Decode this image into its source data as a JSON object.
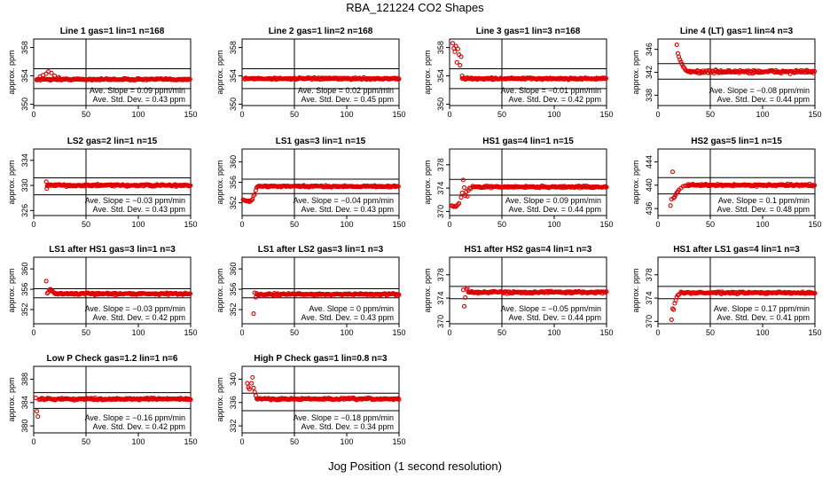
{
  "page": {
    "title": "RBA_121224  CO2 Shapes",
    "xlabel": "Jog Position (1 second resolution)"
  },
  "colors": {
    "point": "#e00000",
    "axis": "#000000"
  },
  "chart_data": [
    {
      "type": "scatter",
      "title": "Line 1 gas=1 lin=1 n=168",
      "ylabel": "approx. ppm",
      "xlim": [
        0,
        150
      ],
      "ylim": [
        349.8,
        359.2
      ],
      "yticks": [
        350,
        354,
        358
      ],
      "xticks": [
        0,
        50,
        100,
        150
      ],
      "hlines": [
        355.0,
        352.2
      ],
      "vline": 50,
      "slope_label": "Ave. Slope = 0.09  ppm/min",
      "std_label": "Ave. Std. Dev. = 0.43  ppm",
      "start": 3,
      "level": 353.5,
      "pre": [
        [
          3,
          353.4
        ],
        [
          6,
          353.9
        ],
        [
          9,
          354.1
        ],
        [
          12,
          354.3
        ],
        [
          14,
          354.6
        ],
        [
          17,
          354.4
        ],
        [
          20,
          354.0
        ],
        [
          24,
          353.8
        ]
      ],
      "noise": 0.12,
      "step": 0.8
    },
    {
      "type": "scatter",
      "title": "Line 2 gas=1 lin=2 n=168",
      "ylabel": "approx. ppm",
      "xlim": [
        0,
        150
      ],
      "ylim": [
        349.8,
        359.2
      ],
      "yticks": [
        350,
        354,
        358
      ],
      "xticks": [
        0,
        50,
        100,
        150
      ],
      "hlines": [
        355.0,
        352.2
      ],
      "vline": 50,
      "slope_label": "Ave. Slope = 0.02  ppm/min",
      "std_label": "Ave. Std. Dev. = 0.45  ppm",
      "start": 2,
      "level": 353.6,
      "pre": [],
      "noise": 0.12,
      "step": 0.8
    },
    {
      "type": "scatter",
      "title": "Line 3 gas=1 lin=3 n=168",
      "ylabel": "approx. ppm",
      "xlim": [
        0,
        150
      ],
      "ylim": [
        349.8,
        359.2
      ],
      "yticks": [
        350,
        354,
        358
      ],
      "xticks": [
        0,
        50,
        100,
        150
      ],
      "hlines": [
        355.0,
        352.2
      ],
      "vline": 50,
      "slope_label": "Ave. Slope = −0.01  ppm/min",
      "std_label": "Ave. Std. Dev. = 0.42  ppm",
      "start": 12,
      "level": 353.6,
      "pre": [
        [
          3,
          358.6
        ],
        [
          4,
          357.9
        ],
        [
          5,
          357.4
        ],
        [
          6,
          358.2
        ],
        [
          7,
          355.9
        ],
        [
          8,
          357.8
        ],
        [
          9,
          357.0
        ],
        [
          10,
          355.5
        ],
        [
          11,
          356.7
        ],
        [
          12,
          354.0
        ]
      ],
      "noise": 0.12,
      "step": 0.8
    },
    {
      "type": "scatter",
      "title": "Line 4 (LT) gas=1 lin=4 n=3",
      "ylabel": "approx. ppm",
      "xlim": [
        0,
        150
      ],
      "ylim": [
        336.2,
        347.8
      ],
      "yticks": [
        338,
        342,
        346
      ],
      "xticks": [
        0,
        50,
        100,
        150
      ],
      "hlines": [
        343.5,
        340.8
      ],
      "vline": 50,
      "slope_label": "Ave. Slope = −0.08  ppm/min",
      "std_label": "Ave. Std. Dev. = 0.44  ppm",
      "start": 28,
      "level": 342.1,
      "pre": [
        [
          18,
          346.8
        ],
        [
          19,
          345.3
        ],
        [
          20,
          344.7
        ],
        [
          21,
          344.2
        ],
        [
          22,
          343.8
        ],
        [
          23,
          343.4
        ],
        [
          24,
          343.0
        ],
        [
          25,
          342.8
        ],
        [
          26,
          342.5
        ],
        [
          27,
          342.3
        ]
      ],
      "noise": 0.25,
      "step": 0.8
    },
    {
      "type": "scatter",
      "title": "LS2 gas=2 lin=1 n=15",
      "ylabel": "approx. ppm",
      "xlim": [
        0,
        150
      ],
      "ylim": [
        325.2,
        335.8
      ],
      "yticks": [
        326,
        330,
        334
      ],
      "xticks": [
        0,
        50,
        100,
        150
      ],
      "hlines": [
        331.2,
        328.5
      ],
      "vline": 50,
      "slope_label": "Ave. Slope = −0.03  ppm/min",
      "std_label": "Ave. Std. Dev. = 0.43  ppm",
      "start": 13,
      "level": 330.0,
      "pre": [
        [
          12,
          330.6
        ],
        [
          12.5,
          329.5
        ],
        [
          13,
          329.9
        ]
      ],
      "noise": 0.15,
      "step": 0.8
    },
    {
      "type": "scatter",
      "title": "LS1 gas=3 lin=1 n=15",
      "ylabel": "approx. ppm",
      "xlim": [
        0,
        150
      ],
      "ylim": [
        349.5,
        362.5
      ],
      "yticks": [
        352,
        356,
        360
      ],
      "xticks": [
        0,
        50,
        100,
        150
      ],
      "hlines": [
        356.6,
        353.8
      ],
      "vline": 50,
      "slope_label": "Ave. Slope = −0.04  ppm/min",
      "std_label": "Ave. Std. Dev. = 0.43  ppm",
      "start": 15,
      "level": 355.2,
      "pre": [
        [
          1,
          352.6
        ],
        [
          2,
          352.5
        ],
        [
          3,
          352.4
        ],
        [
          4,
          352.4
        ],
        [
          5,
          352.3
        ],
        [
          6,
          352.4
        ],
        [
          7,
          352.2
        ],
        [
          8,
          352.3
        ],
        [
          9,
          352.5
        ],
        [
          10,
          352.7
        ],
        [
          11,
          353.4
        ],
        [
          12,
          353.6
        ],
        [
          13,
          354.4
        ],
        [
          14,
          355.0
        ]
      ],
      "noise": 0.15,
      "step": 0.8
    },
    {
      "type": "scatter",
      "title": "HS1 gas=4 lin=1 n=15",
      "ylabel": "approx. ppm",
      "xlim": [
        0,
        150
      ],
      "ylim": [
        369.3,
        380.7
      ],
      "yticks": [
        370,
        374,
        378
      ],
      "xticks": [
        0,
        50,
        100,
        150
      ],
      "hlines": [
        375.5,
        372.8
      ],
      "vline": 50,
      "slope_label": "Ave. Slope = 0.09  ppm/min",
      "std_label": "Ave. Std. Dev. = 0.44  ppm",
      "start": 22,
      "level": 374.2,
      "pre": [
        [
          2,
          371.0
        ],
        [
          3,
          370.9
        ],
        [
          4,
          370.8
        ],
        [
          5,
          370.9
        ],
        [
          6,
          370.8
        ],
        [
          7,
          371.0
        ],
        [
          8,
          371.2
        ],
        [
          9,
          371.4
        ],
        [
          11,
          372.4
        ],
        [
          12,
          373.2
        ],
        [
          13,
          375.4
        ],
        [
          14,
          374.1
        ],
        [
          15,
          372.7
        ],
        [
          16,
          373.4
        ],
        [
          17,
          372.6
        ],
        [
          18,
          373.6
        ],
        [
          19,
          374.0
        ],
        [
          20,
          373.9
        ]
      ],
      "noise": 0.15,
      "step": 0.8
    },
    {
      "type": "scatter",
      "title": "HS2 gas=5 lin=1 n=15",
      "ylabel": "approx. ppm",
      "xlim": [
        0,
        150
      ],
      "ylim": [
        434.8,
        446.2
      ],
      "yticks": [
        436,
        440,
        444
      ],
      "xticks": [
        0,
        50,
        100,
        150
      ],
      "hlines": [
        441.3,
        438.5
      ],
      "vline": 50,
      "slope_label": "Ave. Slope = 0.1  ppm/min",
      "std_label": "Ave. Std. Dev. = 0.48  ppm",
      "start": 28,
      "level": 440.0,
      "pre": [
        [
          12,
          436.5
        ],
        [
          13,
          437.6
        ],
        [
          14,
          442.3
        ],
        [
          15,
          437.8
        ],
        [
          16,
          438.0
        ],
        [
          17,
          438.4
        ],
        [
          18,
          438.7
        ],
        [
          19,
          438.9
        ],
        [
          20,
          439.2
        ],
        [
          22,
          439.5
        ],
        [
          24,
          439.8
        ],
        [
          26,
          439.9
        ]
      ],
      "noise": 0.15,
      "step": 0.8
    },
    {
      "type": "scatter",
      "title": "LS1 after HS1 gas=3 lin=1 n=3",
      "ylabel": "approx. ppm",
      "xlim": [
        0,
        150
      ],
      "ylim": [
        349.2,
        362.3
      ],
      "yticks": [
        352,
        356,
        360
      ],
      "xticks": [
        0,
        50,
        100,
        150
      ],
      "hlines": [
        356.1,
        354.3
      ],
      "vline": 50,
      "slope_label": "Ave. Slope = −0.03  ppm/min",
      "std_label": "Ave. Std. Dev. = 0.42  ppm",
      "start": 20,
      "level": 355.1,
      "pre": [
        [
          12,
          357.6
        ],
        [
          13,
          355.2
        ],
        [
          14,
          355.4
        ],
        [
          15,
          355.9
        ],
        [
          16,
          356.0
        ],
        [
          17,
          355.7
        ],
        [
          18,
          355.6
        ],
        [
          19,
          355.4
        ]
      ],
      "noise": 0.17,
      "step": 0.8
    },
    {
      "type": "scatter",
      "title": "LS1 after LS2 gas=3 lin=1 n=3",
      "ylabel": "approx. ppm",
      "xlim": [
        0,
        150
      ],
      "ylim": [
        349.2,
        362.3
      ],
      "yticks": [
        352,
        356,
        360
      ],
      "xticks": [
        0,
        50,
        100,
        150
      ],
      "hlines": [
        356.1,
        354.3
      ],
      "vline": 50,
      "slope_label": "Ave. Slope = 0  ppm/min",
      "std_label": "Ave. Std. Dev. = 0.43  ppm",
      "start": 14,
      "level": 355.0,
      "pre": [
        [
          11,
          351.2
        ],
        [
          12,
          355.3
        ],
        [
          13,
          354.4
        ]
      ],
      "noise": 0.17,
      "step": 0.8
    },
    {
      "type": "scatter",
      "title": "HS1 after HS2 gas=4 lin=1 n=3",
      "ylabel": "approx. ppm",
      "xlim": [
        0,
        150
      ],
      "ylim": [
        369.6,
        381.0
      ],
      "yticks": [
        370,
        374,
        378
      ],
      "xticks": [
        0,
        50,
        100,
        150
      ],
      "hlines": [
        376.0,
        373.9
      ],
      "vline": 50,
      "slope_label": "Ave. Slope = −0.05  ppm/min",
      "std_label": "Ave. Std. Dev. = 0.44  ppm",
      "start": 18,
      "level": 375.0,
      "pre": [
        [
          13,
          375.4
        ],
        [
          14,
          372.6
        ],
        [
          15,
          374.1
        ],
        [
          16,
          375.5
        ],
        [
          17,
          375.7
        ]
      ],
      "noise": 0.17,
      "step": 0.8
    },
    {
      "type": "scatter",
      "title": "HS1 after LS1 gas=4 lin=1 n=3",
      "ylabel": "approx. ppm",
      "xlim": [
        0,
        150
      ],
      "ylim": [
        369.6,
        381.0
      ],
      "yticks": [
        370,
        374,
        378
      ],
      "xticks": [
        0,
        50,
        100,
        150
      ],
      "hlines": [
        376.0,
        373.9
      ],
      "vline": 50,
      "slope_label": "Ave. Slope = 0.17  ppm/min",
      "std_label": "Ave. Std. Dev. = 0.41  ppm",
      "start": 22,
      "level": 374.9,
      "pre": [
        [
          13,
          370.3
        ],
        [
          14,
          372.2
        ],
        [
          15,
          372.0
        ],
        [
          16,
          373.1
        ],
        [
          17,
          373.6
        ],
        [
          18,
          374.2
        ],
        [
          19,
          374.5
        ],
        [
          20,
          374.6
        ]
      ],
      "noise": 0.15,
      "step": 0.8
    },
    {
      "type": "scatter",
      "title": "Low P Check gas=1.2 lin=1 n=6",
      "ylabel": "approx. ppm",
      "xlim": [
        0,
        150
      ],
      "ylim": [
        378.8,
        390.2
      ],
      "yticks": [
        380,
        384,
        388
      ],
      "xticks": [
        0,
        50,
        100,
        150
      ],
      "hlines": [
        385.7,
        383.0
      ],
      "vline": 50,
      "slope_label": "Ave. Slope = −0.16  ppm/min",
      "std_label": "Ave. Std. Dev. = 0.42  ppm",
      "start": 6,
      "level": 384.6,
      "pre": [
        [
          2,
          384.8
        ],
        [
          3,
          382.5
        ],
        [
          4,
          381.6
        ],
        [
          5,
          384.5
        ]
      ],
      "noise": 0.15,
      "step": 0.8
    },
    {
      "type": "scatter",
      "title": "High P Check gas=1 lin=0.8 n=3",
      "ylabel": "approx. ppm",
      "xlim": [
        0,
        150
      ],
      "ylim": [
        330.8,
        342.2
      ],
      "yticks": [
        332,
        336,
        340
      ],
      "xticks": [
        0,
        50,
        100,
        150
      ],
      "hlines": [
        337.6,
        334.6
      ],
      "vline": 50,
      "slope_label": "Ave. Slope = −0.18  ppm/min",
      "std_label": "Ave. Std. Dev. = 0.34  ppm",
      "start": 14,
      "level": 336.6,
      "pre": [
        [
          5,
          339.3
        ],
        [
          6,
          338.6
        ],
        [
          7,
          338.3
        ],
        [
          9,
          339.3
        ],
        [
          10,
          340.3
        ],
        [
          11,
          338.5
        ],
        [
          12,
          337.8
        ],
        [
          13,
          337.2
        ]
      ],
      "noise": 0.15,
      "step": 0.8
    }
  ]
}
